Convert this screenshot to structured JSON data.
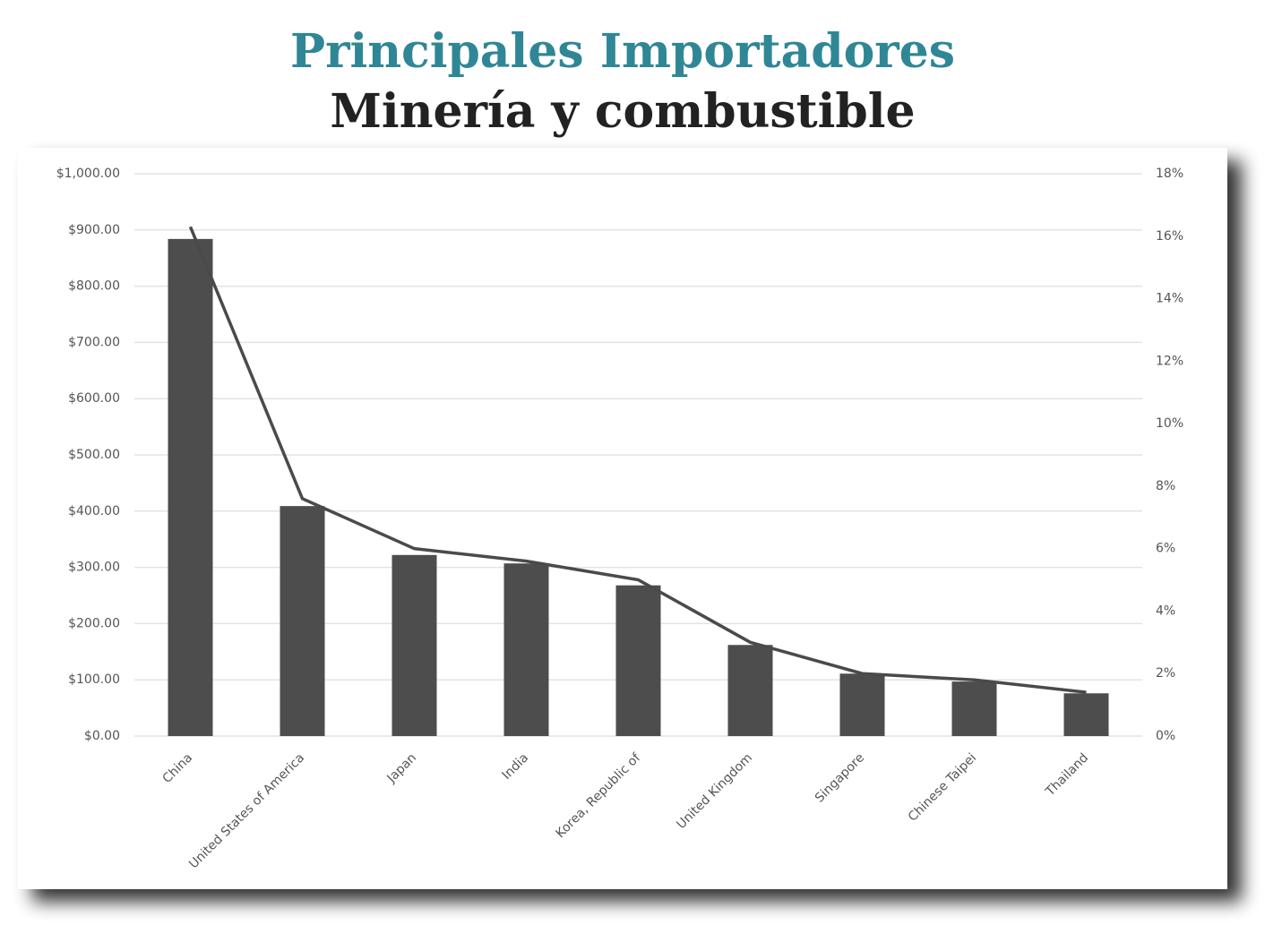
{
  "chart_data": {
    "type": "bar",
    "title": "Principales  Importadores",
    "subtitle": "Minería y combustible",
    "categories": [
      "China",
      "United States of America",
      "Japan",
      "India",
      "Korea, Republic of",
      "United Kingdom",
      "Singapore",
      "Chinese Taipei",
      "Thailand"
    ],
    "series": [
      {
        "type": "bar",
        "color": "#4d4d4d",
        "values": [
          884,
          409,
          322,
          307,
          268,
          162,
          111,
          97,
          76
        ]
      },
      {
        "type": "line",
        "axis": "y2",
        "color": "#4a4a4a",
        "values": [
          16.3,
          7.6,
          6.0,
          5.6,
          5.0,
          3.0,
          2.0,
          1.8,
          1.4
        ]
      }
    ],
    "ylim": [
      0,
      1000
    ],
    "yticks": [
      {
        "value": 0,
        "label": "$0.00"
      },
      {
        "value": 100,
        "label": "$100.00"
      },
      {
        "value": 200,
        "label": "$200.00"
      },
      {
        "value": 300,
        "label": "$300.00"
      },
      {
        "value": 400,
        "label": "$400.00"
      },
      {
        "value": 500,
        "label": "$500.00"
      },
      {
        "value": 600,
        "label": "$600.00"
      },
      {
        "value": 700,
        "label": "$700.00"
      },
      {
        "value": 800,
        "label": "$800.00"
      },
      {
        "value": 900,
        "label": "$900.00"
      },
      {
        "value": 1000,
        "label": "$1,000.00"
      }
    ],
    "y2lim": [
      0,
      18
    ],
    "y2ticks": [
      {
        "value": 0,
        "label": "0%"
      },
      {
        "value": 2,
        "label": "2%"
      },
      {
        "value": 4,
        "label": "4%"
      },
      {
        "value": 6,
        "label": "6%"
      },
      {
        "value": 8,
        "label": "8%"
      },
      {
        "value": 10,
        "label": "10%"
      },
      {
        "value": 12,
        "label": "12%"
      },
      {
        "value": 14,
        "label": "14%"
      },
      {
        "value": 16,
        "label": "16%"
      },
      {
        "value": 18,
        "label": "18%"
      }
    ],
    "grid": true
  }
}
